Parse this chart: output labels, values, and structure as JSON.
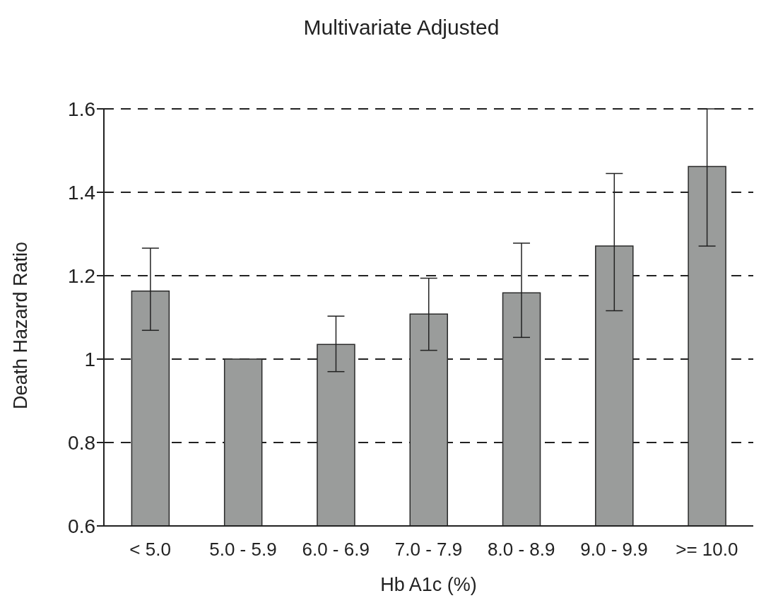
{
  "chart_data": {
    "type": "bar",
    "title": "Multivariate Adjusted",
    "xlabel": "Hb A1c (%)",
    "ylabel": "Death Hazard Ratio",
    "categories": [
      "< 5.0",
      "5.0 - 5.9",
      "6.0 - 6.9",
      "7.0 - 7.9",
      "8.0 - 8.9",
      "9.0 - 9.9",
      ">= 10.0"
    ],
    "values": [
      1.163,
      1.0,
      1.035,
      1.108,
      1.159,
      1.271,
      1.462
    ],
    "errors": [
      [
        1.069,
        1.266
      ],
      null,
      [
        0.97,
        1.103
      ],
      [
        1.021,
        1.194
      ],
      [
        1.052,
        1.278
      ],
      [
        1.116,
        1.445
      ],
      [
        1.271,
        1.6
      ]
    ],
    "color": "#9a9c9b",
    "ylim": [
      0.6,
      1.6
    ],
    "yticks": [
      {
        "value": 0.6,
        "label": "0.6"
      },
      {
        "value": 0.8,
        "label": "0.8"
      },
      {
        "value": 1,
        "label": "1"
      },
      {
        "value": 1.2,
        "label": "1.2"
      },
      {
        "value": 1.4,
        "label": "1.4"
      },
      {
        "value": 1.6,
        "label": "1.6"
      }
    ],
    "grid": "y"
  }
}
